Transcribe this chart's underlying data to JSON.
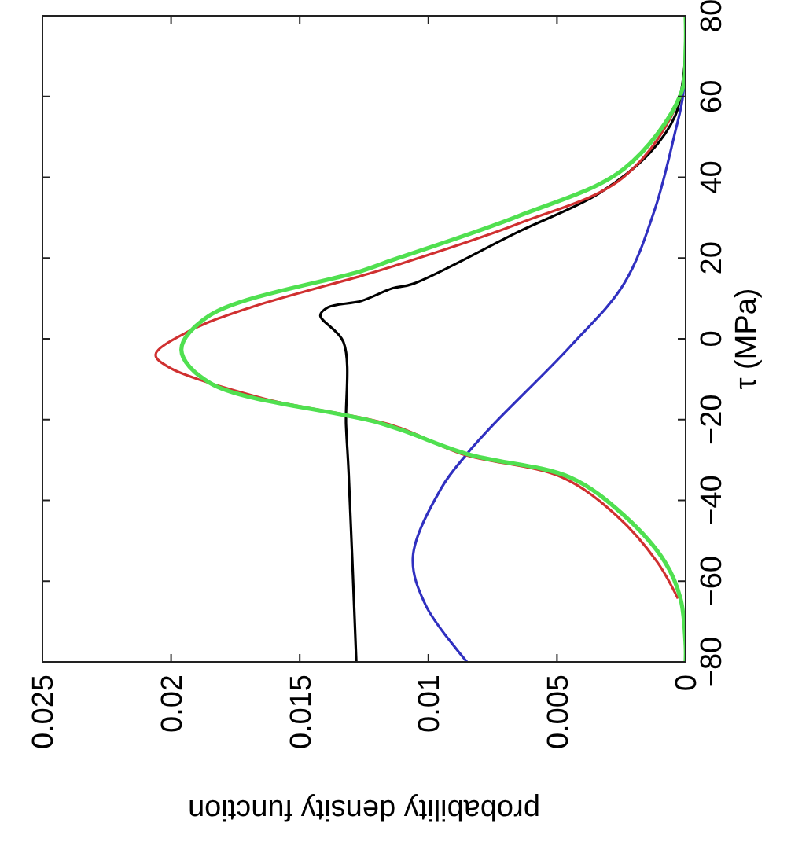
{
  "chart_data": {
    "type": "line",
    "xlabel": "probability density function",
    "ylabel": "τ (MPa)",
    "xlim": [
      0.025,
      0
    ],
    "ylim": [
      -80,
      80
    ],
    "xticks": [
      0.025,
      0.02,
      0.015,
      0.01,
      0.005,
      0
    ],
    "yticks": [
      -80,
      -60,
      -40,
      -20,
      0,
      20,
      40,
      60,
      80
    ],
    "grid": false,
    "series": [
      {
        "color": "#3030c0",
        "values": [
          -80,
          -66,
          -54,
          -37,
          -28.5,
          -21.4,
          -2,
          13.6,
          32,
          51.4,
          60.4,
          80
        ],
        "x": [
          0.0085,
          0.0101,
          0.0106,
          0.0095,
          0.0085,
          0.0075,
          0.0045,
          0.0024,
          0.0012,
          0.0004,
          0.0001,
          0
        ]
      },
      {
        "color": "#000000",
        "values": [
          -80,
          -33,
          -21.4,
          -0.8,
          5.8,
          7.8,
          9.4,
          12.5,
          13.6,
          26.5,
          35.9,
          46,
          55.3,
          64.3,
          72,
          80
        ],
        "x": [
          0.0128,
          0.0131,
          0.0132,
          0.0133,
          0.0142,
          0.0139,
          0.0126,
          0.0114,
          0.0106,
          0.0065,
          0.0034,
          0.0014,
          0.0004,
          0.0001,
          0,
          0
        ]
      },
      {
        "color": "#d03030",
        "values": [
          -64.3,
          -55.3,
          -43.7,
          -34.3,
          -28.5,
          -21.4,
          -14.8,
          -7,
          -3.9,
          1.9,
          7.8,
          15.6,
          17.9,
          28.5,
          40.1,
          60.4,
          80
        ],
        "x": [
          0.0003,
          0.0011,
          0.0027,
          0.0048,
          0.0087,
          0.0114,
          0.0164,
          0.0201,
          0.0206,
          0.0193,
          0.0169,
          0.0126,
          0.0114,
          0.0065,
          0.0024,
          0.0002,
          0
        ]
      },
      {
        "color": "#50e050",
        "values": [
          -80,
          -76,
          -64.3,
          -55.3,
          -43.7,
          -34.3,
          -28.5,
          -21,
          -10.9,
          -2.7,
          5.8,
          16.8,
          19.5,
          30.4,
          42.1,
          60.4,
          72,
          80
        ],
        "x": [
          0,
          0,
          0.0002,
          0.0008,
          0.0024,
          0.0045,
          0.0085,
          0.0118,
          0.0185,
          0.0196,
          0.0185,
          0.0126,
          0.0114,
          0.0065,
          0.0024,
          0.0002,
          0,
          0
        ]
      }
    ]
  }
}
